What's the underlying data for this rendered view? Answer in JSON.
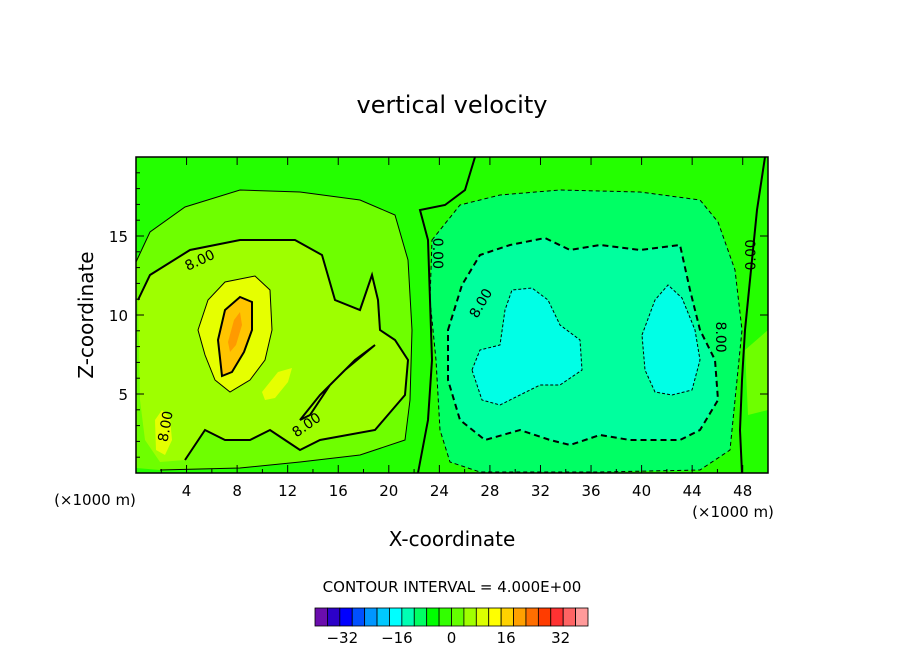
{
  "chart_data": {
    "type": "contour",
    "title": "vertical velocity",
    "xlabel": "X-coordinate",
    "ylabel": "Z-coordinate",
    "x_unit_left": "(×1000 m)",
    "x_unit_right": "(×1000 m)",
    "xlim": [
      0,
      50
    ],
    "ylim": [
      0,
      20
    ],
    "x_ticks": [
      4,
      8,
      12,
      16,
      20,
      24,
      28,
      32,
      36,
      40,
      44,
      48
    ],
    "y_ticks": [
      5,
      10,
      15
    ],
    "contour_interval_text": "CONTOUR INTERVAL = 4.000E+00",
    "contour_interval": 4,
    "contour_labels": [
      {
        "text": "8.00",
        "x": 5.2,
        "z": 13.2,
        "rotate": -25
      },
      {
        "text": "8.00",
        "x": 2.7,
        "z": 2.9,
        "rotate": -80
      },
      {
        "text": "8.00",
        "x": 13.7,
        "z": 2.8,
        "rotate": -35
      },
      {
        "text": "0.00",
        "x": 23.5,
        "z": 13.9,
        "rotate": 90
      },
      {
        "text": "8.00",
        "x": 27.6,
        "z": 10.6,
        "rotate": -60
      },
      {
        "text": "8.00",
        "x": 45.9,
        "z": 8.6,
        "rotate": 90
      },
      {
        "text": "0.00",
        "x": 49.0,
        "z": 13.8,
        "rotate": -90
      }
    ],
    "colorbar": {
      "tick_labels": [
        "−32",
        "−16",
        "0",
        "16",
        "32"
      ],
      "tick_values": [
        -32,
        -16,
        0,
        16,
        32
      ],
      "min": -40,
      "max": 40,
      "colors": [
        "#6a0dad",
        "#2c00c8",
        "#0000ff",
        "#0050ff",
        "#0096ff",
        "#00c8ff",
        "#00ffff",
        "#00ffb4",
        "#00ff64",
        "#00ff00",
        "#32ff00",
        "#64ff00",
        "#a0ff00",
        "#dcff00",
        "#ffff00",
        "#ffd200",
        "#ffa000",
        "#ff6e00",
        "#ff3c00",
        "#ff3232",
        "#ff6464",
        "#ff9a9a"
      ]
    }
  }
}
